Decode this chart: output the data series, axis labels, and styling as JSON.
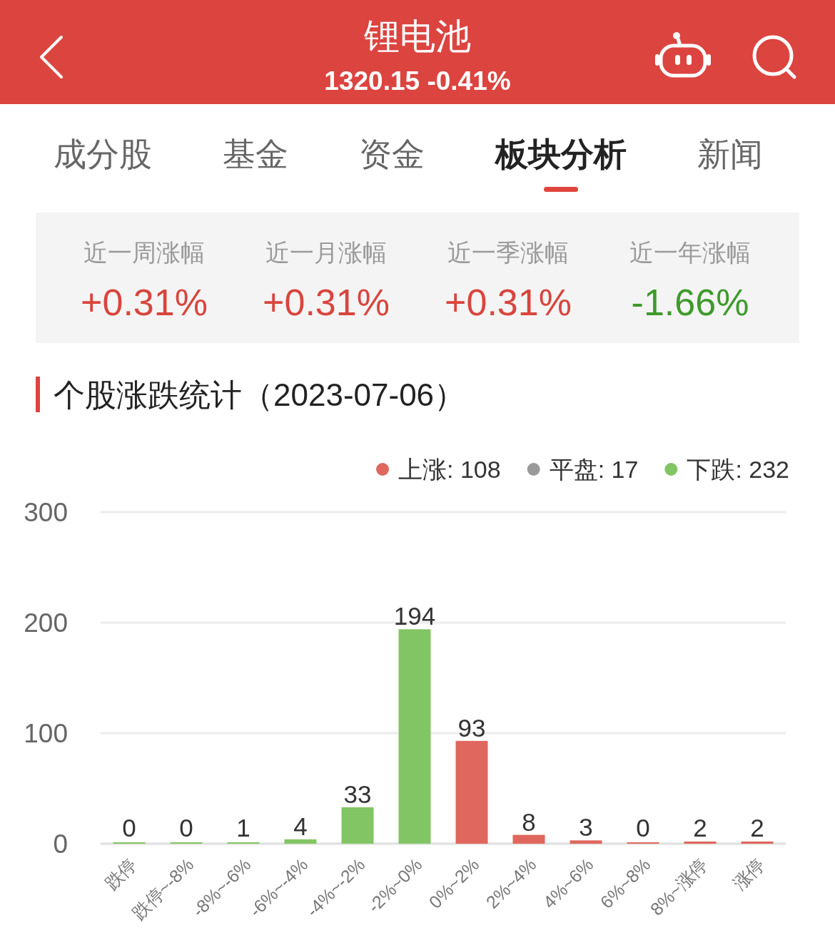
{
  "chart_data": [
    {
      "type": "other",
      "title": "锂电池",
      "subtitle": "1320.15 -0.41%",
      "annotations": [
        "成分股",
        "基金",
        "资金",
        "板块分析",
        "新闻"
      ],
      "categories": [
        "近一周涨幅",
        "近一月涨幅",
        "近一季涨幅",
        "近一年涨幅"
      ],
      "value_labels": [
        "+0.31%",
        "+0.31%",
        "+0.31%",
        "-1.66%"
      ],
      "colors": [
        "#d8453d",
        "#d8453d",
        "#d8453d",
        "#3e9a2b"
      ]
    },
    {
      "type": "bar",
      "title": "个股涨跌统计（2023-07-06）",
      "categories": [
        "跌停",
        "跌停~-8%",
        "-8%~-6%",
        "-6%~-4%",
        "-4%~-2%",
        "-2%~0%",
        "0%~2%",
        "2%~4%",
        "4%~6%",
        "6%~8%",
        "8%~涨停",
        "涨停"
      ],
      "stacked": true,
      "series": [
        {
          "name": "上涨: 108",
          "color": "#e0675e",
          "values": [
            null,
            null,
            null,
            null,
            null,
            null,
            93,
            8,
            3,
            0,
            2,
            2
          ]
        },
        {
          "name": "平盘: 17",
          "color": "#9a9a9a",
          "values": [
            null,
            null,
            null,
            null,
            null,
            null,
            null,
            null,
            null,
            null,
            null,
            null
          ]
        },
        {
          "name": "下跌: 232",
          "color": "#82c564",
          "values": [
            0,
            0,
            1,
            4,
            33,
            194,
            null,
            null,
            null,
            null,
            null,
            null
          ]
        }
      ],
      "ylim": [
        0,
        300
      ],
      "yticks": [
        0,
        100,
        200,
        300
      ],
      "grid": "y",
      "legend": "top right",
      "data_labels": true
    }
  ]
}
